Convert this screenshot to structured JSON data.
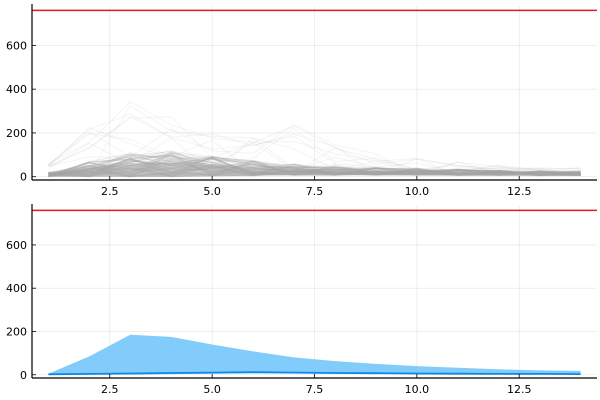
{
  "chart_data": [
    {
      "type": "line",
      "title": "",
      "xlabel": "",
      "ylabel": "",
      "xlim": [
        0.6,
        14.4
      ],
      "ylim": [
        -15,
        780
      ],
      "xticks": [
        "2.5",
        "5.0",
        "7.5",
        "10.0",
        "12.5"
      ],
      "yticks": [
        "0",
        "200",
        "400",
        "600"
      ],
      "grid": true,
      "legend": "none",
      "x": [
        1,
        2,
        3,
        4,
        5,
        6,
        7,
        8,
        9,
        10,
        11,
        12,
        13,
        14
      ],
      "hline": {
        "y": 760,
        "color": "#e31a1c"
      },
      "ensemble": {
        "color": "#a6a6a6",
        "bulk_low": [
          0,
          0,
          0,
          0,
          2,
          4,
          6,
          7,
          7,
          7,
          6,
          6,
          5,
          5
        ],
        "bulk_high": [
          22,
          70,
          110,
          120,
          95,
          75,
          60,
          52,
          45,
          40,
          35,
          30,
          28,
          25
        ],
        "peak_max": [
          60,
          240,
          370,
          300,
          215,
          190,
          240,
          150,
          110,
          90,
          70,
          60,
          50,
          45
        ]
      }
    },
    {
      "type": "area",
      "title": "",
      "xlabel": "",
      "ylabel": "",
      "xlim": [
        0.6,
        14.4
      ],
      "ylim": [
        -15,
        780
      ],
      "xticks": [
        "2.5",
        "5.0",
        "7.5",
        "10.0",
        "12.5"
      ],
      "yticks": [
        "0",
        "200",
        "400",
        "600"
      ],
      "grid": true,
      "legend": "none",
      "x": [
        1,
        2,
        3,
        4,
        5,
        6,
        7,
        8,
        9,
        10,
        11,
        12,
        13,
        14
      ],
      "hline": {
        "y": 760,
        "color": "#e31a1c"
      },
      "band": {
        "color": "#74c7fb",
        "lower": [
          0,
          0,
          1,
          3,
          5,
          7,
          6,
          5,
          4,
          3,
          3,
          2,
          2,
          2
        ],
        "upper": [
          5,
          85,
          185,
          175,
          140,
          108,
          80,
          63,
          50,
          40,
          32,
          25,
          20,
          18
        ]
      },
      "median_line": {
        "color": "#0e88e8",
        "values": [
          2,
          4,
          6,
          8,
          10,
          12,
          10,
          8,
          7,
          6,
          5,
          4,
          4,
          3
        ]
      }
    }
  ]
}
